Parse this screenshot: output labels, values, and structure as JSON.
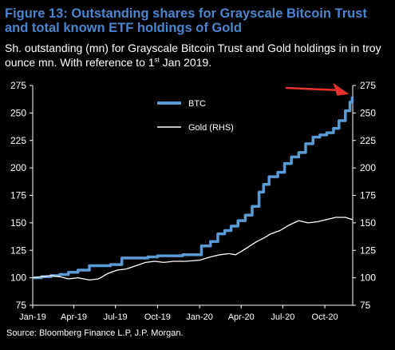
{
  "header": {
    "title": "Figure 13: Outstanding shares for Grayscale Bitcoin Trust and total known ETF holdings of Gold",
    "subtitle_main": "Sh. outstanding (mn) for Grayscale Bitcoin Trust and Gold holdings in in troy ounce mn. With reference to 1",
    "subtitle_sup": "st",
    "subtitle_end": " Jan 2019."
  },
  "footer": {
    "source": "Source: Bloomberg Finance L.P, J.P. Morgan."
  },
  "colors": {
    "background": "#000000",
    "title": "#4a86d0",
    "btc": "#5b9bd5",
    "gold": "#ffffff",
    "arrow": "#e8312a"
  },
  "chart_data": {
    "type": "line",
    "x_axis": {
      "type": "date",
      "min": "2019-01-01",
      "max": "2020-12-01",
      "ticks": [
        {
          "date": "2019-01-01",
          "label": "Jan-19"
        },
        {
          "date": "2019-04-01",
          "label": "Apr-19"
        },
        {
          "date": "2019-07-01",
          "label": "Jul-19"
        },
        {
          "date": "2019-10-01",
          "label": "Oct-19"
        },
        {
          "date": "2020-01-01",
          "label": "Jan-20"
        },
        {
          "date": "2020-04-01",
          "label": "Apr-20"
        },
        {
          "date": "2020-07-01",
          "label": "Jul-20"
        },
        {
          "date": "2020-10-01",
          "label": "Oct-20"
        }
      ]
    },
    "y_left": {
      "min": 75,
      "max": 275,
      "ticks": [
        75,
        100,
        125,
        150,
        175,
        200,
        225,
        250,
        275
      ]
    },
    "y_right": {
      "min": 75,
      "max": 275,
      "ticks": [
        75,
        100,
        125,
        150,
        175,
        200,
        225,
        250,
        275
      ]
    },
    "legend": {
      "placement": "top-center"
    },
    "grid": false,
    "annotations": [
      {
        "type": "arrow",
        "color": "#e8312a",
        "target_date": "2020-11-30",
        "target_value": 265
      }
    ],
    "series": [
      {
        "name": "BTC",
        "axis": "left",
        "color": "#5b9bd5",
        "step": true,
        "points": [
          [
            "2019-01-01",
            100
          ],
          [
            "2019-01-20",
            101
          ],
          [
            "2019-02-10",
            102
          ],
          [
            "2019-03-01",
            103
          ],
          [
            "2019-03-20",
            105
          ],
          [
            "2019-04-10",
            107
          ],
          [
            "2019-05-05",
            111
          ],
          [
            "2019-05-25",
            111
          ],
          [
            "2019-06-20",
            112
          ],
          [
            "2019-07-15",
            118
          ],
          [
            "2019-08-15",
            118
          ],
          [
            "2019-09-10",
            119
          ],
          [
            "2019-10-01",
            120
          ],
          [
            "2019-10-25",
            120
          ],
          [
            "2019-11-25",
            121
          ],
          [
            "2019-12-20",
            121
          ],
          [
            "2020-01-05",
            129
          ],
          [
            "2020-01-25",
            133
          ],
          [
            "2020-02-10",
            140
          ],
          [
            "2020-02-25",
            143
          ],
          [
            "2020-03-10",
            147
          ],
          [
            "2020-03-25",
            152
          ],
          [
            "2020-04-10",
            157
          ],
          [
            "2020-04-25",
            165
          ],
          [
            "2020-05-10",
            178
          ],
          [
            "2020-05-20",
            185
          ],
          [
            "2020-06-01",
            192
          ],
          [
            "2020-06-20",
            196
          ],
          [
            "2020-07-05",
            204
          ],
          [
            "2020-07-20",
            210
          ],
          [
            "2020-08-05",
            214
          ],
          [
            "2020-08-20",
            222
          ],
          [
            "2020-09-05",
            228
          ],
          [
            "2020-09-20",
            230
          ],
          [
            "2020-10-05",
            232
          ],
          [
            "2020-10-20",
            236
          ],
          [
            "2020-11-01",
            243
          ],
          [
            "2020-11-15",
            252
          ],
          [
            "2020-11-25",
            260
          ],
          [
            "2020-11-30",
            265
          ]
        ]
      },
      {
        "name": "Gold (RHS)",
        "axis": "right",
        "color": "#ffffff",
        "step": false,
        "points": [
          [
            "2019-01-01",
            100
          ],
          [
            "2019-01-20",
            101
          ],
          [
            "2019-02-10",
            102
          ],
          [
            "2019-03-01",
            101
          ],
          [
            "2019-03-20",
            99
          ],
          [
            "2019-04-10",
            100
          ],
          [
            "2019-05-05",
            98
          ],
          [
            "2019-05-25",
            99
          ],
          [
            "2019-06-15",
            104
          ],
          [
            "2019-07-05",
            107
          ],
          [
            "2019-07-25",
            108
          ],
          [
            "2019-08-15",
            111
          ],
          [
            "2019-09-05",
            114
          ],
          [
            "2019-09-25",
            115
          ],
          [
            "2019-10-15",
            114
          ],
          [
            "2019-11-05",
            115
          ],
          [
            "2019-12-01",
            115
          ],
          [
            "2020-01-01",
            116
          ],
          [
            "2020-01-25",
            119
          ],
          [
            "2020-02-15",
            121
          ],
          [
            "2020-03-05",
            122
          ],
          [
            "2020-03-20",
            121
          ],
          [
            "2020-04-05",
            125
          ],
          [
            "2020-04-20",
            129
          ],
          [
            "2020-05-05",
            133
          ],
          [
            "2020-05-20",
            136
          ],
          [
            "2020-06-05",
            140
          ],
          [
            "2020-06-25",
            143
          ],
          [
            "2020-07-15",
            148
          ],
          [
            "2020-08-05",
            152
          ],
          [
            "2020-08-25",
            150
          ],
          [
            "2020-09-15",
            151
          ],
          [
            "2020-10-05",
            153
          ],
          [
            "2020-10-25",
            155
          ],
          [
            "2020-11-15",
            155
          ],
          [
            "2020-11-30",
            153
          ]
        ]
      }
    ]
  }
}
